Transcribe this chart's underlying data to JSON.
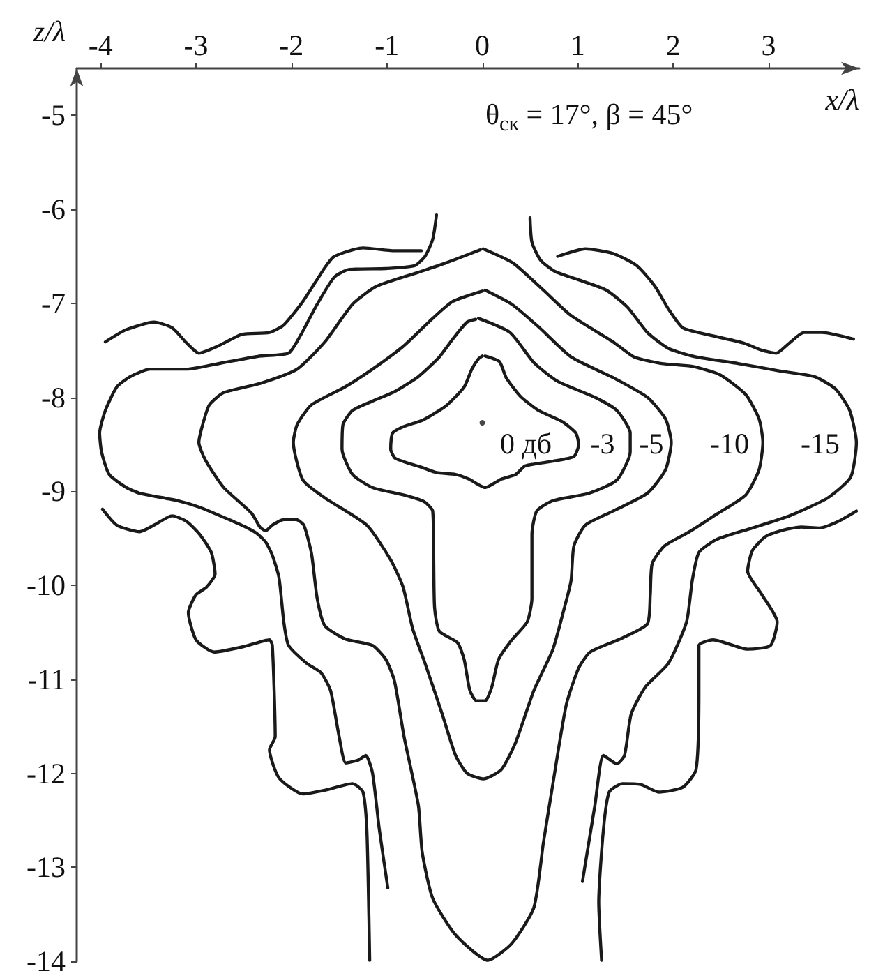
{
  "chart_data": {
    "type": "line",
    "xlabel": "x/λ",
    "ylabel": "z/λ",
    "annotations": [
      "θ$_{ск}$ = 17°, β = 45°",
      "0 дб",
      "-3",
      "-5",
      "-10",
      "-15"
    ],
    "xlim": [
      -4.25,
      3.95
    ],
    "ylim": [
      -14,
      -4.5
    ],
    "xticks": [
      -4,
      -3,
      -2,
      -1,
      0,
      1,
      2,
      3
    ],
    "yticks": [
      -14,
      -13,
      -12,
      -11,
      -10,
      -9,
      -8,
      -7,
      -6,
      -5
    ],
    "grid": false,
    "marker": "none",
    "line_style": "solid",
    "series": [
      {
        "color": "#1a1a1a",
        "x": [
          0.03,
          0.18,
          0.25,
          0.4,
          0.59,
          0.84,
          0.98,
          1.01,
          0.96,
          0.74,
          0.45,
          0.35,
          0.2,
          0.03,
          -0.14,
          -0.28,
          -0.48,
          -0.62,
          -0.91,
          -0.96,
          -0.94,
          -0.82,
          -0.62,
          -0.38,
          -0.19,
          -0.11,
          -0.04,
          0.0
        ],
        "values": [
          -7.56,
          -7.62,
          -7.79,
          -7.99,
          -8.14,
          -8.26,
          -8.38,
          -8.5,
          -8.63,
          -8.68,
          -8.73,
          -8.82,
          -8.87,
          -8.96,
          -8.87,
          -8.82,
          -8.8,
          -8.75,
          -8.65,
          -8.55,
          -8.38,
          -8.31,
          -8.24,
          -8.09,
          -7.89,
          -7.7,
          -7.59,
          -7.56
        ]
      },
      {
        "color": "#1a1a1a",
        "x": [
          -0.04,
          0.29,
          0.54,
          0.79,
          1.18,
          1.41,
          1.55,
          1.55,
          1.41,
          1.12,
          0.74,
          0.57,
          0.52,
          0.52,
          0.47,
          0.31,
          0.17,
          0.1,
          0.03,
          -0.06,
          -0.13,
          -0.19,
          -0.26,
          -0.45,
          -0.5,
          -0.51,
          -0.52,
          -0.61,
          -0.82,
          -1.15,
          -1.36,
          -1.47,
          -1.46,
          -1.36,
          -1.15,
          -0.92,
          -0.67,
          -0.45,
          -0.31,
          -0.16,
          -0.07
        ],
        "values": [
          -7.16,
          -7.31,
          -7.63,
          -7.83,
          -8.0,
          -8.14,
          -8.38,
          -8.58,
          -8.88,
          -9.02,
          -9.1,
          -9.21,
          -9.46,
          -10.14,
          -10.39,
          -10.58,
          -10.79,
          -11.08,
          -11.23,
          -11.23,
          -11.12,
          -10.79,
          -10.61,
          -10.49,
          -10.24,
          -9.66,
          -9.21,
          -9.11,
          -9.04,
          -8.96,
          -8.82,
          -8.55,
          -8.29,
          -8.14,
          -8.04,
          -7.94,
          -7.78,
          -7.57,
          -7.38,
          -7.2,
          -7.17
        ]
      },
      {
        "color": "#1a1a1a",
        "x": [
          0.03,
          0.31,
          0.6,
          0.93,
          1.37,
          1.73,
          1.92,
          1.98,
          1.92,
          1.73,
          1.37,
          1.08,
          0.96,
          0.93,
          0.86,
          0.74,
          0.54,
          0.35,
          0.2,
          0.01,
          -0.16,
          -0.28,
          -0.42,
          -0.6,
          -0.73,
          -0.83,
          -0.96,
          -1.21,
          -1.65,
          -1.88,
          -1.98,
          -1.94,
          -1.79,
          -1.44,
          -1.15,
          -0.82,
          -0.52,
          -0.31,
          0.0
        ],
        "values": [
          -6.86,
          -7.01,
          -7.26,
          -7.57,
          -7.79,
          -8.0,
          -8.23,
          -8.48,
          -8.77,
          -9.02,
          -9.21,
          -9.36,
          -9.58,
          -9.95,
          -10.24,
          -10.68,
          -11.12,
          -11.67,
          -11.96,
          -12.06,
          -12.0,
          -11.81,
          -11.37,
          -10.83,
          -10.46,
          -10.02,
          -9.73,
          -9.36,
          -9.07,
          -8.88,
          -8.48,
          -8.29,
          -8.08,
          -7.89,
          -7.7,
          -7.45,
          -7.16,
          -6.98,
          -6.87
        ]
      },
      {
        "color": "#1a1a1a",
        "x": [
          0.01,
          0.32,
          0.64,
          0.93,
          1.37,
          1.59,
          1.88,
          2.2,
          2.49,
          2.76,
          2.9,
          2.94,
          2.9,
          2.76,
          2.46,
          2.17,
          1.91,
          1.78,
          1.76,
          1.73,
          1.47,
          1.13,
          1.01,
          0.88,
          0.74,
          0.64,
          0.54,
          0.31,
          0.06,
          -0.28,
          -0.52,
          -0.63,
          -0.67,
          -0.82,
          -0.92,
          -1.01,
          -1.15,
          -1.44,
          -1.65,
          -1.73,
          -1.79,
          -1.87,
          -1.95,
          -2.08,
          -2.2,
          -2.27,
          -2.33,
          -2.42,
          -2.71,
          -2.9,
          -2.97,
          -2.93,
          -2.86,
          -2.71,
          -2.32,
          -1.94,
          -1.65,
          -1.36,
          -1.11,
          -0.67,
          -0.38,
          -0.02
        ],
        "values": [
          -6.42,
          -6.57,
          -6.86,
          -7.13,
          -7.41,
          -7.57,
          -7.64,
          -7.67,
          -7.76,
          -7.97,
          -8.23,
          -8.48,
          -8.77,
          -9.04,
          -9.24,
          -9.43,
          -9.58,
          -9.77,
          -10.1,
          -10.41,
          -10.56,
          -10.71,
          -10.88,
          -11.27,
          -12.11,
          -12.74,
          -13.43,
          -13.81,
          -13.99,
          -13.72,
          -13.33,
          -12.84,
          -12.34,
          -11.61,
          -11.02,
          -10.79,
          -10.64,
          -10.57,
          -10.43,
          -10.14,
          -9.66,
          -9.36,
          -9.3,
          -9.3,
          -9.36,
          -9.42,
          -9.38,
          -9.23,
          -8.96,
          -8.67,
          -8.48,
          -8.29,
          -8.08,
          -7.95,
          -7.85,
          -7.7,
          -7.41,
          -7.01,
          -6.82,
          -6.67,
          -6.57,
          -6.43
        ]
      },
      {
        "color": "#1a1a1a",
        "x": [
          -0.48,
          -0.52,
          -0.6,
          -0.71,
          -1.01,
          -1.4,
          -1.55,
          -1.73,
          -1.91,
          -2.03,
          -2.32,
          -2.71,
          -3.1,
          -3.48,
          -3.69,
          -3.83,
          -3.95,
          -4.01,
          -3.99,
          -3.91,
          -3.73,
          -3.59,
          -3.19,
          -2.96,
          -2.61,
          -2.48,
          -2.36,
          -2.27,
          -2.2,
          -2.13,
          -2.08,
          -2.03,
          -1.84,
          -1.69,
          -1.59,
          -1.5,
          -1.43,
          -1.3,
          -1.22,
          -1.15,
          -1.08,
          -0.99
        ],
        "values": [
          -6.06,
          -6.32,
          -6.5,
          -6.6,
          -6.63,
          -6.64,
          -6.72,
          -7.01,
          -7.35,
          -7.53,
          -7.56,
          -7.63,
          -7.7,
          -7.7,
          -7.78,
          -7.89,
          -8.14,
          -8.38,
          -8.58,
          -8.82,
          -8.96,
          -9.02,
          -9.1,
          -9.17,
          -9.32,
          -9.38,
          -9.45,
          -9.54,
          -9.68,
          -9.92,
          -10.39,
          -10.64,
          -10.83,
          -10.93,
          -11.12,
          -11.61,
          -11.89,
          -11.86,
          -11.81,
          -12.0,
          -12.59,
          -13.22
        ]
      },
      {
        "color": "#1a1a1a",
        "x": [
          0.5,
          0.52,
          0.61,
          0.76,
          1.01,
          1.3,
          1.52,
          1.73,
          1.95,
          2.24,
          2.68,
          3.12,
          3.48,
          3.7,
          3.85,
          3.92,
          3.86,
          3.62,
          3.22,
          2.83,
          2.46,
          2.27,
          2.2,
          2.14,
          1.95,
          1.71,
          1.56,
          1.49,
          1.41,
          1.27,
          1.18,
          1.05
        ],
        "values": [
          -6.09,
          -6.35,
          -6.54,
          -6.66,
          -6.75,
          -6.86,
          -7.04,
          -7.31,
          -7.48,
          -7.57,
          -7.64,
          -7.72,
          -7.78,
          -7.91,
          -8.14,
          -8.48,
          -8.85,
          -9.07,
          -9.26,
          -9.39,
          -9.51,
          -9.65,
          -9.95,
          -10.39,
          -10.83,
          -11.08,
          -11.37,
          -11.81,
          -11.9,
          -11.81,
          -12.34,
          -13.15
        ]
      },
      {
        "color": "#1a1a1a",
        "x": [
          -3.95,
          -3.73,
          -3.44,
          -3.25,
          -3.1,
          -2.97,
          -2.76,
          -2.52,
          -2.23,
          -2.08,
          -1.88,
          -1.65,
          -1.55,
          -1.25,
          -0.92,
          -0.64
        ],
        "values": [
          -7.41,
          -7.28,
          -7.2,
          -7.26,
          -7.42,
          -7.53,
          -7.45,
          -7.33,
          -7.31,
          -7.23,
          -6.98,
          -6.62,
          -6.5,
          -6.41,
          -6.44,
          -6.44
        ]
      },
      {
        "color": "#1a1a1a",
        "x": [
          0.79,
          1.08,
          1.37,
          1.62,
          1.81,
          1.95,
          2.1,
          2.35,
          2.73,
          2.93,
          3.08,
          3.22,
          3.37,
          3.56,
          3.89
        ],
        "values": [
          -6.5,
          -6.42,
          -6.47,
          -6.6,
          -6.82,
          -7.06,
          -7.26,
          -7.33,
          -7.42,
          -7.5,
          -7.53,
          -7.42,
          -7.31,
          -7.31,
          -7.38
        ]
      },
      {
        "color": "#1a1a1a",
        "x": [
          -3.98,
          -3.83,
          -3.59,
          -3.44,
          -3.25,
          -3.1,
          -2.96,
          -2.84,
          -2.8,
          -2.89,
          -3.0,
          -3.08,
          -3.0,
          -2.81,
          -2.49,
          -2.23,
          -2.2,
          -2.17,
          -2.23,
          -2.13,
          -1.88,
          -1.65,
          -1.36,
          -1.25,
          -1.21,
          -1.18
        ],
        "values": [
          -9.19,
          -9.36,
          -9.43,
          -9.36,
          -9.26,
          -9.32,
          -9.46,
          -9.65,
          -9.88,
          -10.02,
          -10.1,
          -10.29,
          -10.58,
          -10.71,
          -10.65,
          -10.58,
          -10.64,
          -11.61,
          -11.75,
          -12.05,
          -12.22,
          -12.18,
          -12.11,
          -12.2,
          -12.59,
          -13.99
        ]
      },
      {
        "color": "#1a1a1a",
        "x": [
          3.92,
          3.73,
          3.53,
          3.34,
          3.16,
          2.97,
          2.83,
          2.78,
          2.93,
          3.09,
          3.02,
          2.78,
          2.42,
          2.27,
          2.27,
          2.24,
          2.1,
          1.85,
          1.66,
          1.47,
          1.33,
          1.27,
          1.22,
          1.25
        ],
        "values": [
          -9.21,
          -9.32,
          -9.39,
          -9.38,
          -9.41,
          -9.48,
          -9.63,
          -9.85,
          -10.1,
          -10.39,
          -10.64,
          -10.68,
          -10.58,
          -10.64,
          -11.12,
          -11.96,
          -12.15,
          -12.2,
          -12.12,
          -12.11,
          -12.2,
          -12.59,
          -13.37,
          -13.99
        ]
      },
      {
        "type": "scatter",
        "color": "#1a1a1a",
        "marker": "circle",
        "x": [
          0
        ],
        "values": [
          -8.27
        ]
      }
    ]
  }
}
